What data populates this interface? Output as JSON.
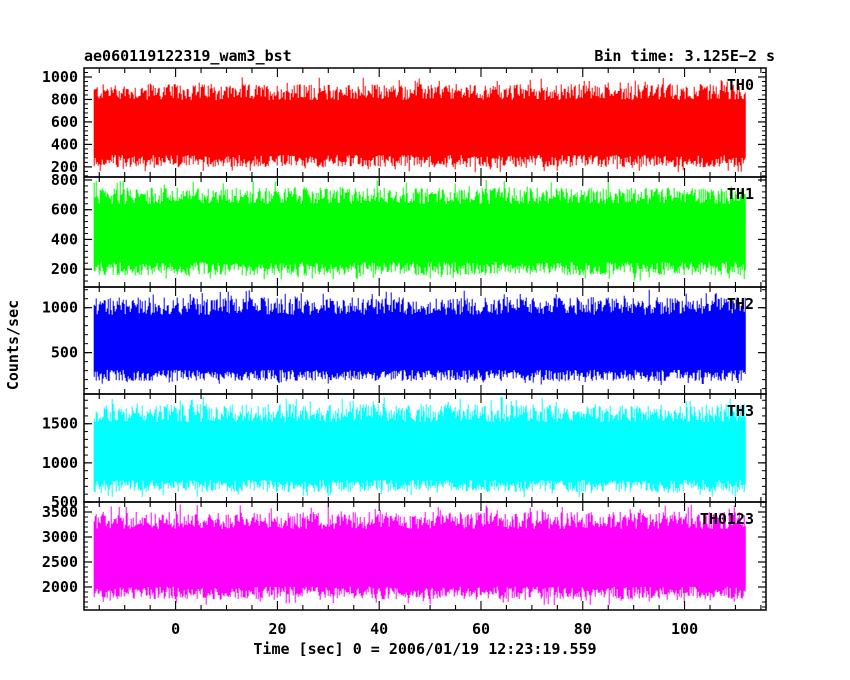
{
  "chart_data": {
    "type": "line",
    "title_left": "ae060119122319_wam3_bst",
    "title_right": "Bin time: 3.125E−2 s",
    "xlabel": "Time [sec] 0 = 2006/01/19 12:23:19.559",
    "ylabel": "Counts/sec",
    "xlim": [
      -18,
      116
    ],
    "x_range_data": [
      -16,
      112
    ],
    "bin_time": 0.03125,
    "x_ticks": [
      0,
      20,
      40,
      60,
      80,
      100
    ],
    "grid": false,
    "series": [
      {
        "name": "TH0",
        "color": "#ff0000",
        "ylim": [
          110,
          1080
        ],
        "yticks": [
          200,
          400,
          600,
          800,
          1000
        ],
        "mean": 540,
        "low": 150,
        "high": 1000
      },
      {
        "name": "TH1",
        "color": "#00ff00",
        "ylim": [
          80,
          820
        ],
        "yticks": [
          200,
          400,
          600,
          800
        ],
        "mean": 440,
        "low": 120,
        "high": 800
      },
      {
        "name": "TH2",
        "color": "#0000ff",
        "ylim": [
          40,
          1230
        ],
        "yticks": [
          500,
          1000
        ],
        "mean": 580,
        "low": 130,
        "high": 1200
      },
      {
        "name": "TH3",
        "color": "#00ffff",
        "ylim": [
          500,
          1880
        ],
        "yticks": [
          500,
          1000,
          1500
        ],
        "mean": 1120,
        "low": 560,
        "high": 1850
      },
      {
        "name": "TH0123",
        "color": "#ff00ff",
        "ylim": [
          1540,
          3700
        ],
        "yticks": [
          2000,
          2500,
          3000,
          3500
        ],
        "mean": 2560,
        "low": 1640,
        "high": 3650
      }
    ]
  }
}
